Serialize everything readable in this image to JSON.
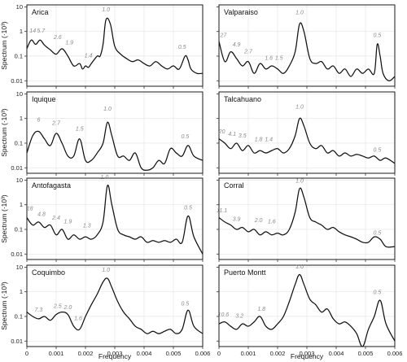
{
  "chart_data": {
    "type": "line",
    "xlabel": "Frequency",
    "ylabel": "Spectrum (·10³)",
    "xlim": [
      0,
      0.006
    ],
    "x_ticks": [
      "0",
      "0.001",
      "0.002",
      "0.003",
      "0.004",
      "0.005",
      "0.006"
    ],
    "ylim_log": [
      0.006,
      12
    ],
    "y_ticks": [
      "0.01",
      "0.1",
      "1",
      "10"
    ],
    "grid": true,
    "panels": [
      {
        "title": "Arica",
        "x": [
          0.0,
          0.00015,
          0.0003,
          0.00045,
          0.0006,
          0.0008,
          0.001,
          0.0012,
          0.0014,
          0.0016,
          0.0018,
          0.0019,
          0.002,
          0.0021,
          0.0022,
          0.0024,
          0.0025,
          0.0026,
          0.0027,
          0.00285,
          0.003,
          0.0032,
          0.0034,
          0.0036,
          0.0038,
          0.004,
          0.0042,
          0.0044,
          0.0046,
          0.0048,
          0.005,
          0.0052,
          0.0054,
          0.0055,
          0.0056,
          0.0058,
          0.006
        ],
        "y": [
          0.2,
          0.45,
          0.3,
          0.45,
          0.28,
          0.18,
          0.12,
          0.2,
          0.1,
          0.04,
          0.05,
          0.03,
          0.04,
          0.035,
          0.05,
          0.1,
          0.1,
          0.3,
          3,
          2,
          0.25,
          0.12,
          0.08,
          0.06,
          0.07,
          0.05,
          0.04,
          0.06,
          0.04,
          0.03,
          0.04,
          0.03,
          0.1,
          0.07,
          0.03,
          0.02,
          0.02
        ],
        "peaks": [
          {
            "label": "14",
            "x": 0.0002,
            "y": 0.9
          },
          {
            "label": "5.7",
            "x": 0.00048,
            "y": 0.9
          },
          {
            "label": "2.6",
            "x": 0.00105,
            "y": 0.5
          },
          {
            "label": "1.9",
            "x": 0.00145,
            "y": 0.3
          },
          {
            "label": "1.4",
            "x": 0.0021,
            "y": 0.09
          },
          {
            "label": "1.0",
            "x": 0.0027,
            "y": 6.5
          },
          {
            "label": "0.5",
            "x": 0.0053,
            "y": 0.2
          }
        ]
      },
      {
        "title": "Valparaiso",
        "x": [
          0.0,
          0.0002,
          0.0004,
          0.0006,
          0.0008,
          0.001,
          0.0012,
          0.0014,
          0.0016,
          0.0018,
          0.002,
          0.0022,
          0.0024,
          0.0026,
          0.00275,
          0.0029,
          0.0031,
          0.0033,
          0.0035,
          0.0037,
          0.0039,
          0.0041,
          0.0043,
          0.0045,
          0.0047,
          0.0049,
          0.0051,
          0.0053,
          0.0054,
          0.0055,
          0.0056,
          0.0058,
          0.006
        ],
        "y": [
          0.4,
          0.06,
          0.15,
          0.08,
          0.04,
          0.06,
          0.02,
          0.05,
          0.03,
          0.04,
          0.03,
          0.02,
          0.04,
          0.15,
          2,
          1,
          0.08,
          0.05,
          0.06,
          0.03,
          0.04,
          0.02,
          0.03,
          0.015,
          0.03,
          0.02,
          0.03,
          0.02,
          0.3,
          0.1,
          0.02,
          0.01,
          0.015
        ],
        "peaks": [
          {
            "label": "27",
            "x": 0.00015,
            "y": 0.6
          },
          {
            "label": "4.9",
            "x": 0.0006,
            "y": 0.25
          },
          {
            "label": "2.7",
            "x": 0.001,
            "y": 0.13
          },
          {
            "label": "1.6",
            "x": 0.0017,
            "y": 0.07
          },
          {
            "label": "1.5",
            "x": 0.00205,
            "y": 0.07
          },
          {
            "label": "1.0",
            "x": 0.00275,
            "y": 5
          },
          {
            "label": "0.5",
            "x": 0.0054,
            "y": 0.6
          }
        ]
      },
      {
        "title": "Iquique",
        "x": [
          0.0,
          0.0002,
          0.0004,
          0.0006,
          0.0008,
          0.001,
          0.0012,
          0.0014,
          0.0016,
          0.0018,
          0.002,
          0.0022,
          0.0024,
          0.0026,
          0.00275,
          0.0029,
          0.0031,
          0.0033,
          0.0035,
          0.0037,
          0.0039,
          0.0041,
          0.0043,
          0.0045,
          0.0047,
          0.0049,
          0.0051,
          0.0053,
          0.0055,
          0.0057,
          0.006
        ],
        "y": [
          0.04,
          0.2,
          0.3,
          0.15,
          0.08,
          0.25,
          0.1,
          0.03,
          0.03,
          0.15,
          0.02,
          0.02,
          0.04,
          0.1,
          0.7,
          0.2,
          0.03,
          0.03,
          0.02,
          0.04,
          0.01,
          0.008,
          0.01,
          0.02,
          0.015,
          0.06,
          0.04,
          0.03,
          0.08,
          0.03,
          0.02
        ],
        "peaks": [
          {
            "label": "6",
            "x": 0.0004,
            "y": 0.75
          },
          {
            "label": "2.7",
            "x": 0.001,
            "y": 0.55
          },
          {
            "label": "1.5",
            "x": 0.0018,
            "y": 0.32
          },
          {
            "label": "1.0",
            "x": 0.00275,
            "y": 2.1
          },
          {
            "label": "0.5",
            "x": 0.0054,
            "y": 0.16
          }
        ]
      },
      {
        "title": "Talcahuano",
        "x": [
          0.0,
          0.0002,
          0.0004,
          0.0006,
          0.0008,
          0.001,
          0.0012,
          0.0014,
          0.0016,
          0.0018,
          0.002,
          0.0022,
          0.0024,
          0.0026,
          0.00275,
          0.0029,
          0.0031,
          0.0033,
          0.0035,
          0.0037,
          0.0039,
          0.0041,
          0.0043,
          0.0045,
          0.0047,
          0.0049,
          0.0051,
          0.0053,
          0.0055,
          0.0057,
          0.006
        ],
        "y": [
          0.15,
          0.1,
          0.06,
          0.1,
          0.05,
          0.08,
          0.04,
          0.05,
          0.04,
          0.05,
          0.06,
          0.04,
          0.06,
          0.2,
          1.0,
          0.5,
          0.1,
          0.06,
          0.08,
          0.04,
          0.05,
          0.03,
          0.04,
          0.03,
          0.035,
          0.03,
          0.025,
          0.03,
          0.02,
          0.025,
          0.015
        ],
        "peaks": [
          {
            "label": "20",
            "x": 0.0001,
            "y": 0.25
          },
          {
            "label": "4.1",
            "x": 0.00045,
            "y": 0.2
          },
          {
            "label": "3.5",
            "x": 0.0008,
            "y": 0.17
          },
          {
            "label": "1.8",
            "x": 0.00135,
            "y": 0.12
          },
          {
            "label": "1.4",
            "x": 0.0017,
            "y": 0.12
          },
          {
            "label": "1.0",
            "x": 0.00275,
            "y": 2.5
          },
          {
            "label": "0.5",
            "x": 0.0054,
            "y": 0.045
          }
        ]
      },
      {
        "title": "Antofagasta",
        "x": [
          0.0,
          0.0002,
          0.0004,
          0.0006,
          0.0008,
          0.001,
          0.0012,
          0.0014,
          0.0016,
          0.0018,
          0.002,
          0.0022,
          0.0024,
          0.0026,
          0.00275,
          0.0029,
          0.0031,
          0.0033,
          0.0035,
          0.0037,
          0.0039,
          0.0041,
          0.0043,
          0.0045,
          0.0047,
          0.0049,
          0.0051,
          0.0053,
          0.0055,
          0.0057,
          0.006
        ],
        "y": [
          0.3,
          0.15,
          0.2,
          0.12,
          0.15,
          0.06,
          0.1,
          0.04,
          0.06,
          0.04,
          0.05,
          0.04,
          0.06,
          0.2,
          6,
          1.0,
          0.1,
          0.06,
          0.05,
          0.04,
          0.05,
          0.03,
          0.035,
          0.03,
          0.035,
          0.03,
          0.04,
          0.03,
          0.35,
          0.05,
          0.01
        ],
        "peaks": [
          {
            "label": "18",
            "x": 0.0001,
            "y": 0.6
          },
          {
            "label": "4.8",
            "x": 0.0005,
            "y": 0.35
          },
          {
            "label": "2.4",
            "x": 0.001,
            "y": 0.25
          },
          {
            "label": "1.9",
            "x": 0.0014,
            "y": 0.18
          },
          {
            "label": "1.3",
            "x": 0.00205,
            "y": 0.12
          },
          {
            "label": "1.0",
            "x": 0.00265,
            "y": 11
          },
          {
            "label": "0.5",
            "x": 0.0055,
            "y": 0.65
          }
        ]
      },
      {
        "title": "Corral",
        "x": [
          0.0,
          0.0002,
          0.0004,
          0.0006,
          0.0008,
          0.001,
          0.0012,
          0.0014,
          0.0016,
          0.0018,
          0.002,
          0.0022,
          0.0024,
          0.0026,
          0.00275,
          0.0029,
          0.0031,
          0.0033,
          0.0035,
          0.0037,
          0.0039,
          0.0041,
          0.0043,
          0.0045,
          0.0047,
          0.0049,
          0.0051,
          0.0053,
          0.0055,
          0.0057,
          0.006
        ],
        "y": [
          0.3,
          0.2,
          0.15,
          0.1,
          0.12,
          0.08,
          0.1,
          0.06,
          0.08,
          0.06,
          0.07,
          0.06,
          0.1,
          0.5,
          4.5,
          2,
          0.3,
          0.2,
          0.15,
          0.1,
          0.12,
          0.08,
          0.06,
          0.05,
          0.04,
          0.03,
          0.03,
          0.05,
          0.04,
          0.02,
          0.02
        ],
        "peaks": [
          {
            "label": "11.1",
            "x": 0.0001,
            "y": 0.5
          },
          {
            "label": "3.9",
            "x": 0.0006,
            "y": 0.22
          },
          {
            "label": "2.0",
            "x": 0.00135,
            "y": 0.2
          },
          {
            "label": "1.6",
            "x": 0.0018,
            "y": 0.18
          },
          {
            "label": "1.0",
            "x": 0.00275,
            "y": 8
          },
          {
            "label": "0.5",
            "x": 0.0054,
            "y": 0.06
          }
        ]
      },
      {
        "title": "Coquimbo",
        "x": [
          0.0,
          0.0002,
          0.0004,
          0.0006,
          0.0008,
          0.001,
          0.0012,
          0.0014,
          0.0016,
          0.0018,
          0.002,
          0.0022,
          0.0024,
          0.0026,
          0.00275,
          0.0029,
          0.0031,
          0.0033,
          0.0035,
          0.0037,
          0.0039,
          0.0041,
          0.0043,
          0.0045,
          0.0047,
          0.0049,
          0.0051,
          0.0053,
          0.0055,
          0.0057,
          0.006
        ],
        "y": [
          0.15,
          0.1,
          0.08,
          0.1,
          0.07,
          0.12,
          0.15,
          0.12,
          0.04,
          0.03,
          0.1,
          0.3,
          0.8,
          2.5,
          3.5,
          1.5,
          0.4,
          0.15,
          0.08,
          0.04,
          0.03,
          0.02,
          0.025,
          0.02,
          0.025,
          0.03,
          0.02,
          0.03,
          0.18,
          0.04,
          0.02
        ],
        "peaks": [
          {
            "label": "7.3",
            "x": 0.0004,
            "y": 0.16
          },
          {
            "label": "2.5",
            "x": 0.00105,
            "y": 0.22
          },
          {
            "label": "2.0",
            "x": 0.0014,
            "y": 0.2
          },
          {
            "label": "1.6",
            "x": 0.00175,
            "y": 0.07
          },
          {
            "label": "1.0",
            "x": 0.0027,
            "y": 6.5
          },
          {
            "label": "0.5",
            "x": 0.0054,
            "y": 0.28
          }
        ]
      },
      {
        "title": "Puerto Montt",
        "x": [
          0.0,
          0.0002,
          0.0004,
          0.0006,
          0.0008,
          0.001,
          0.0012,
          0.0014,
          0.0016,
          0.0018,
          0.002,
          0.0022,
          0.0024,
          0.0026,
          0.00275,
          0.0029,
          0.0031,
          0.0033,
          0.0035,
          0.0037,
          0.0039,
          0.0041,
          0.0043,
          0.0045,
          0.0047,
          0.0049,
          0.0051,
          0.0053,
          0.0055,
          0.0057,
          0.006
        ],
        "y": [
          0.05,
          0.06,
          0.04,
          0.03,
          0.05,
          0.04,
          0.06,
          0.1,
          0.04,
          0.03,
          0.05,
          0.1,
          0.4,
          2,
          5,
          2,
          0.5,
          0.3,
          0.15,
          0.2,
          0.08,
          0.05,
          0.06,
          0.04,
          0.02,
          0.006,
          0.03,
          0.1,
          0.45,
          0.05,
          0.01
        ],
        "peaks": [
          {
            "label": "10.6",
            "x": 0.00015,
            "y": 0.1
          },
          {
            "label": "3.2",
            "x": 0.0007,
            "y": 0.09
          },
          {
            "label": "1.8",
            "x": 0.00145,
            "y": 0.17
          },
          {
            "label": "1.0",
            "x": 0.00275,
            "y": 9
          },
          {
            "label": "0.5",
            "x": 0.0054,
            "y": 0.8
          }
        ]
      }
    ]
  }
}
